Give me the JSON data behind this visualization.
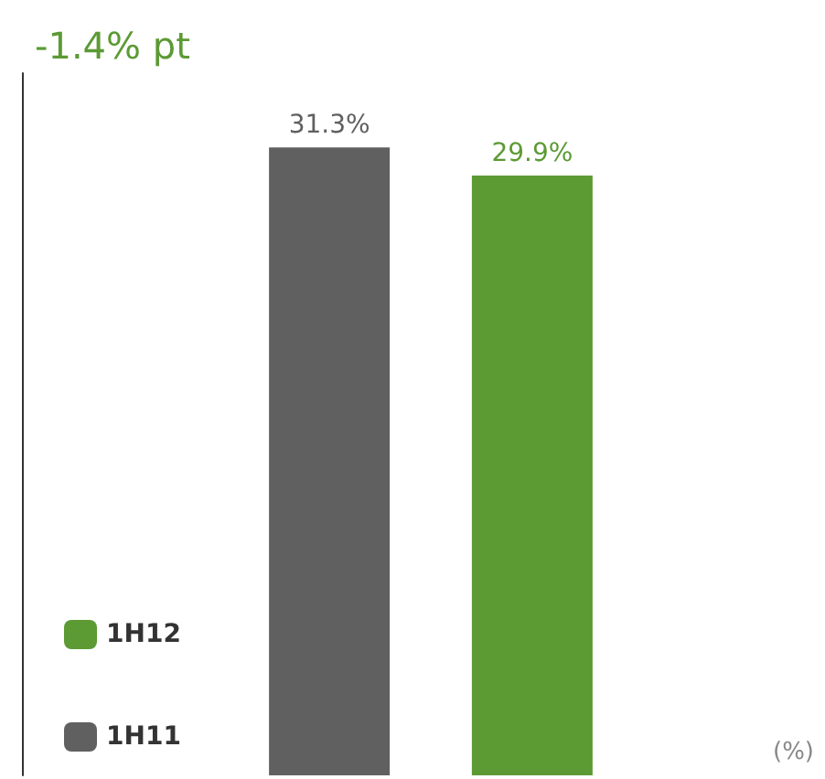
{
  "chart_data": {
    "type": "bar",
    "title": "-1.4% pt",
    "categories": [
      null
    ],
    "series": [
      {
        "name": "1H11",
        "color": "#606060",
        "values": [
          31.3
        ],
        "value_labels": [
          "31.3%"
        ]
      },
      {
        "name": "1H12",
        "color": "#5c9a34",
        "values": [
          29.9
        ],
        "value_labels": [
          "29.9%"
        ]
      }
    ],
    "tick_labels": false,
    "grid": false,
    "legend": "bottom left",
    "annotations": [
      "(%)"
    ]
  }
}
